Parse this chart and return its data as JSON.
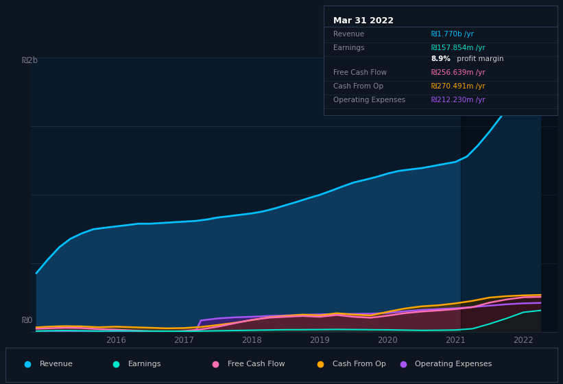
{
  "bg_color": "#0d1520",
  "chart_bg_color": "#0a1929",
  "grid_color": "#1a3045",
  "ylabel_top": "₪2b",
  "ylabel_bottom": "₪0",
  "ylim": [
    0,
    2000
  ],
  "xlim_start": 2014.75,
  "xlim_end": 2022.5,
  "x_ticks": [
    2016,
    2017,
    2018,
    2019,
    2020,
    2021,
    2022
  ],
  "tooltip_title": "Mar 31 2022",
  "tooltip_rows": [
    {
      "label": "Revenue",
      "value": "₪1.770b /yr",
      "color": "#00bfff"
    },
    {
      "label": "Earnings",
      "value": "₪157.854m /yr",
      "color": "#00e5cc"
    },
    {
      "label": "",
      "value": "8.9% profit margin",
      "color": "#cccccc"
    },
    {
      "label": "Free Cash Flow",
      "value": "₪256.639m /yr",
      "color": "#ff6eb4"
    },
    {
      "label": "Cash From Op",
      "value": "₪270.491m /yr",
      "color": "#ffa500"
    },
    {
      "label": "Operating Expenses",
      "value": "₪212.230m /yr",
      "color": "#a855f7"
    }
  ],
  "legend": [
    {
      "label": "Revenue",
      "color": "#00bfff"
    },
    {
      "label": "Earnings",
      "color": "#00e5cc"
    },
    {
      "label": "Free Cash Flow",
      "color": "#ff6eb4"
    },
    {
      "label": "Cash From Op",
      "color": "#ffa500"
    },
    {
      "label": "Operating Expenses",
      "color": "#a855f7"
    }
  ],
  "revenue_x": [
    2014.83,
    2015.0,
    2015.17,
    2015.33,
    2015.5,
    2015.67,
    2015.83,
    2016.0,
    2016.17,
    2016.33,
    2016.5,
    2016.67,
    2016.83,
    2017.0,
    2017.17,
    2017.33,
    2017.5,
    2017.67,
    2017.83,
    2018.0,
    2018.17,
    2018.33,
    2018.5,
    2018.67,
    2018.83,
    2019.0,
    2019.17,
    2019.33,
    2019.5,
    2019.67,
    2019.83,
    2020.0,
    2020.17,
    2020.33,
    2020.5,
    2020.67,
    2020.83,
    2021.0,
    2021.17,
    2021.33,
    2021.5,
    2021.67,
    2021.83,
    2022.0,
    2022.25
  ],
  "revenue_y": [
    430,
    530,
    620,
    680,
    720,
    750,
    760,
    770,
    780,
    790,
    790,
    795,
    800,
    805,
    810,
    820,
    835,
    845,
    855,
    865,
    880,
    900,
    925,
    950,
    975,
    1000,
    1030,
    1060,
    1090,
    1110,
    1130,
    1155,
    1175,
    1185,
    1195,
    1210,
    1225,
    1240,
    1280,
    1360,
    1460,
    1570,
    1680,
    1760,
    1770
  ],
  "earnings_x": [
    2014.83,
    2015.0,
    2015.25,
    2015.5,
    2015.75,
    2016.0,
    2016.25,
    2016.5,
    2016.75,
    2017.0,
    2017.25,
    2017.5,
    2017.75,
    2018.0,
    2018.25,
    2018.5,
    2018.75,
    2019.0,
    2019.25,
    2019.5,
    2019.75,
    2020.0,
    2020.25,
    2020.5,
    2020.75,
    2021.0,
    2021.25,
    2021.5,
    2021.75,
    2022.0,
    2022.25
  ],
  "earnings_y": [
    8,
    10,
    12,
    10,
    8,
    10,
    9,
    8,
    7,
    6,
    8,
    10,
    12,
    14,
    16,
    18,
    18,
    19,
    20,
    19,
    18,
    17,
    15,
    13,
    14,
    16,
    25,
    60,
    100,
    145,
    158
  ],
  "fcf_x": [
    2014.83,
    2015.0,
    2015.25,
    2015.5,
    2015.75,
    2016.0,
    2016.25,
    2016.5,
    2016.75,
    2017.0,
    2017.25,
    2017.5,
    2017.75,
    2018.0,
    2018.25,
    2018.5,
    2018.75,
    2019.0,
    2019.25,
    2019.5,
    2019.75,
    2020.0,
    2020.25,
    2020.5,
    2020.75,
    2021.0,
    2021.25,
    2021.5,
    2021.75,
    2022.0,
    2022.25
  ],
  "fcf_y": [
    25,
    28,
    32,
    30,
    22,
    18,
    12,
    6,
    4,
    8,
    20,
    40,
    65,
    90,
    105,
    112,
    118,
    112,
    125,
    112,
    105,
    120,
    138,
    150,
    158,
    168,
    182,
    215,
    238,
    254,
    257
  ],
  "cashop_x": [
    2014.83,
    2015.0,
    2015.25,
    2015.5,
    2015.75,
    2016.0,
    2016.25,
    2016.5,
    2016.75,
    2017.0,
    2017.25,
    2017.5,
    2017.75,
    2018.0,
    2018.25,
    2018.5,
    2018.75,
    2019.0,
    2019.25,
    2019.5,
    2019.75,
    2020.0,
    2020.25,
    2020.5,
    2020.75,
    2021.0,
    2021.25,
    2021.5,
    2021.75,
    2022.0,
    2022.25
  ],
  "cashop_y": [
    35,
    40,
    44,
    42,
    36,
    40,
    36,
    32,
    28,
    30,
    38,
    52,
    68,
    88,
    108,
    118,
    128,
    122,
    138,
    128,
    122,
    148,
    172,
    188,
    196,
    210,
    228,
    252,
    262,
    268,
    271
  ],
  "opex_x": [
    2014.83,
    2015.0,
    2015.25,
    2015.5,
    2015.75,
    2016.0,
    2016.25,
    2016.5,
    2016.75,
    2017.0,
    2017.17,
    2017.25,
    2017.5,
    2017.75,
    2018.0,
    2018.25,
    2018.5,
    2018.75,
    2019.0,
    2019.25,
    2019.5,
    2019.75,
    2020.0,
    2020.25,
    2020.5,
    2020.75,
    2021.0,
    2021.25,
    2021.5,
    2021.75,
    2022.0,
    2022.25
  ],
  "opex_y": [
    0,
    0,
    0,
    0,
    0,
    0,
    0,
    0,
    0,
    0,
    0,
    85,
    100,
    108,
    112,
    118,
    122,
    126,
    130,
    132,
    133,
    135,
    140,
    152,
    162,
    168,
    174,
    183,
    193,
    203,
    210,
    213
  ],
  "overlay_x": 2021.08,
  "revenue_line_color": "#00bfff",
  "revenue_fill_color": "#0d3a5c",
  "earnings_color": "#00e5cc",
  "fcf_color": "#ff6eb4",
  "cashop_color": "#ffa500",
  "opex_color": "#a855f7"
}
